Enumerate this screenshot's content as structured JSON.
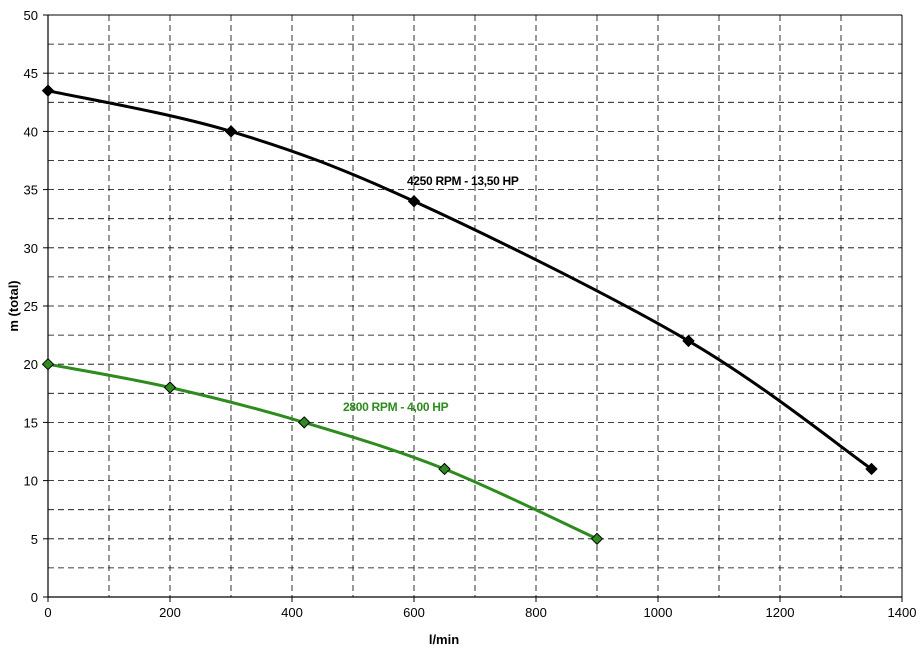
{
  "chart_data": {
    "type": "line",
    "title": "",
    "xlabel": "l/min",
    "ylabel": "m (total)",
    "xlim": [
      0,
      1400
    ],
    "ylim": [
      0,
      50
    ],
    "x_ticks": [
      "0",
      "200",
      "400",
      "600",
      "800",
      "1000",
      "1200",
      "1400"
    ],
    "y_ticks": [
      "0",
      "5",
      "10",
      "15",
      "20",
      "25",
      "30",
      "35",
      "40",
      "45",
      "50"
    ],
    "grid": true,
    "grid_style": "dashed",
    "series": [
      {
        "name": "4250 RPM - 13,50 HP",
        "color": "#000000",
        "marker": "diamond",
        "x": [
          0,
          300,
          600,
          1050,
          1350
        ],
        "y": [
          43.5,
          40,
          34,
          22,
          11
        ]
      },
      {
        "name": "2800 RPM - 4,00 HP",
        "color": "#2e8b1e",
        "marker": "diamond",
        "x": [
          0,
          200,
          420,
          650,
          900
        ],
        "y": [
          20,
          18,
          15,
          11,
          5
        ]
      }
    ]
  }
}
